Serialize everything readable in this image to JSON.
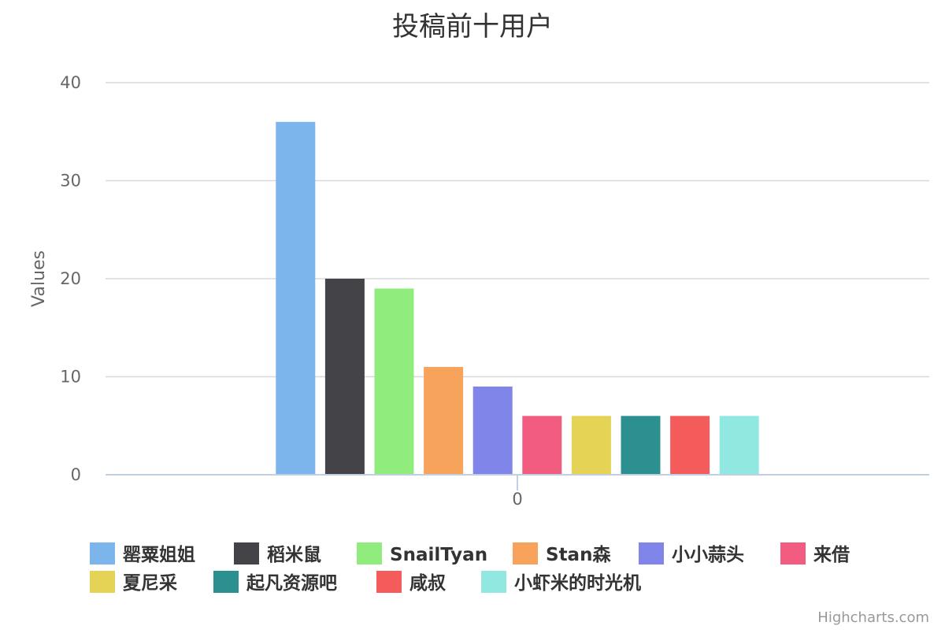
{
  "chart_data": {
    "type": "bar",
    "title": "投稿前十用户",
    "ylabel": "Values",
    "categories": [
      "0"
    ],
    "ylim": [
      0,
      40
    ],
    "yticks": [
      0,
      10,
      20,
      30,
      40
    ],
    "grid": true,
    "legend_position": "bottom",
    "series": [
      {
        "name": "罂粟姐姐",
        "values": [
          36
        ],
        "color": "#7cb5ec"
      },
      {
        "name": "稻米鼠",
        "values": [
          20
        ],
        "color": "#434348"
      },
      {
        "name": "SnailTyan",
        "values": [
          19
        ],
        "color": "#90ed7d"
      },
      {
        "name": "Stan森",
        "values": [
          11
        ],
        "color": "#f7a35c"
      },
      {
        "name": "小小蒜头",
        "values": [
          9
        ],
        "color": "#8085e9"
      },
      {
        "name": "来借",
        "values": [
          6
        ],
        "color": "#f15c80"
      },
      {
        "name": "夏尼采",
        "values": [
          6
        ],
        "color": "#e4d354"
      },
      {
        "name": "起凡资源吧",
        "values": [
          6
        ],
        "color": "#2b908f"
      },
      {
        "name": "咸叔",
        "values": [
          6
        ],
        "color": "#f45b5b"
      },
      {
        "name": "小虾米的时光机",
        "values": [
          6
        ],
        "color": "#91e8e1"
      }
    ]
  },
  "credits": "Highcharts.com"
}
